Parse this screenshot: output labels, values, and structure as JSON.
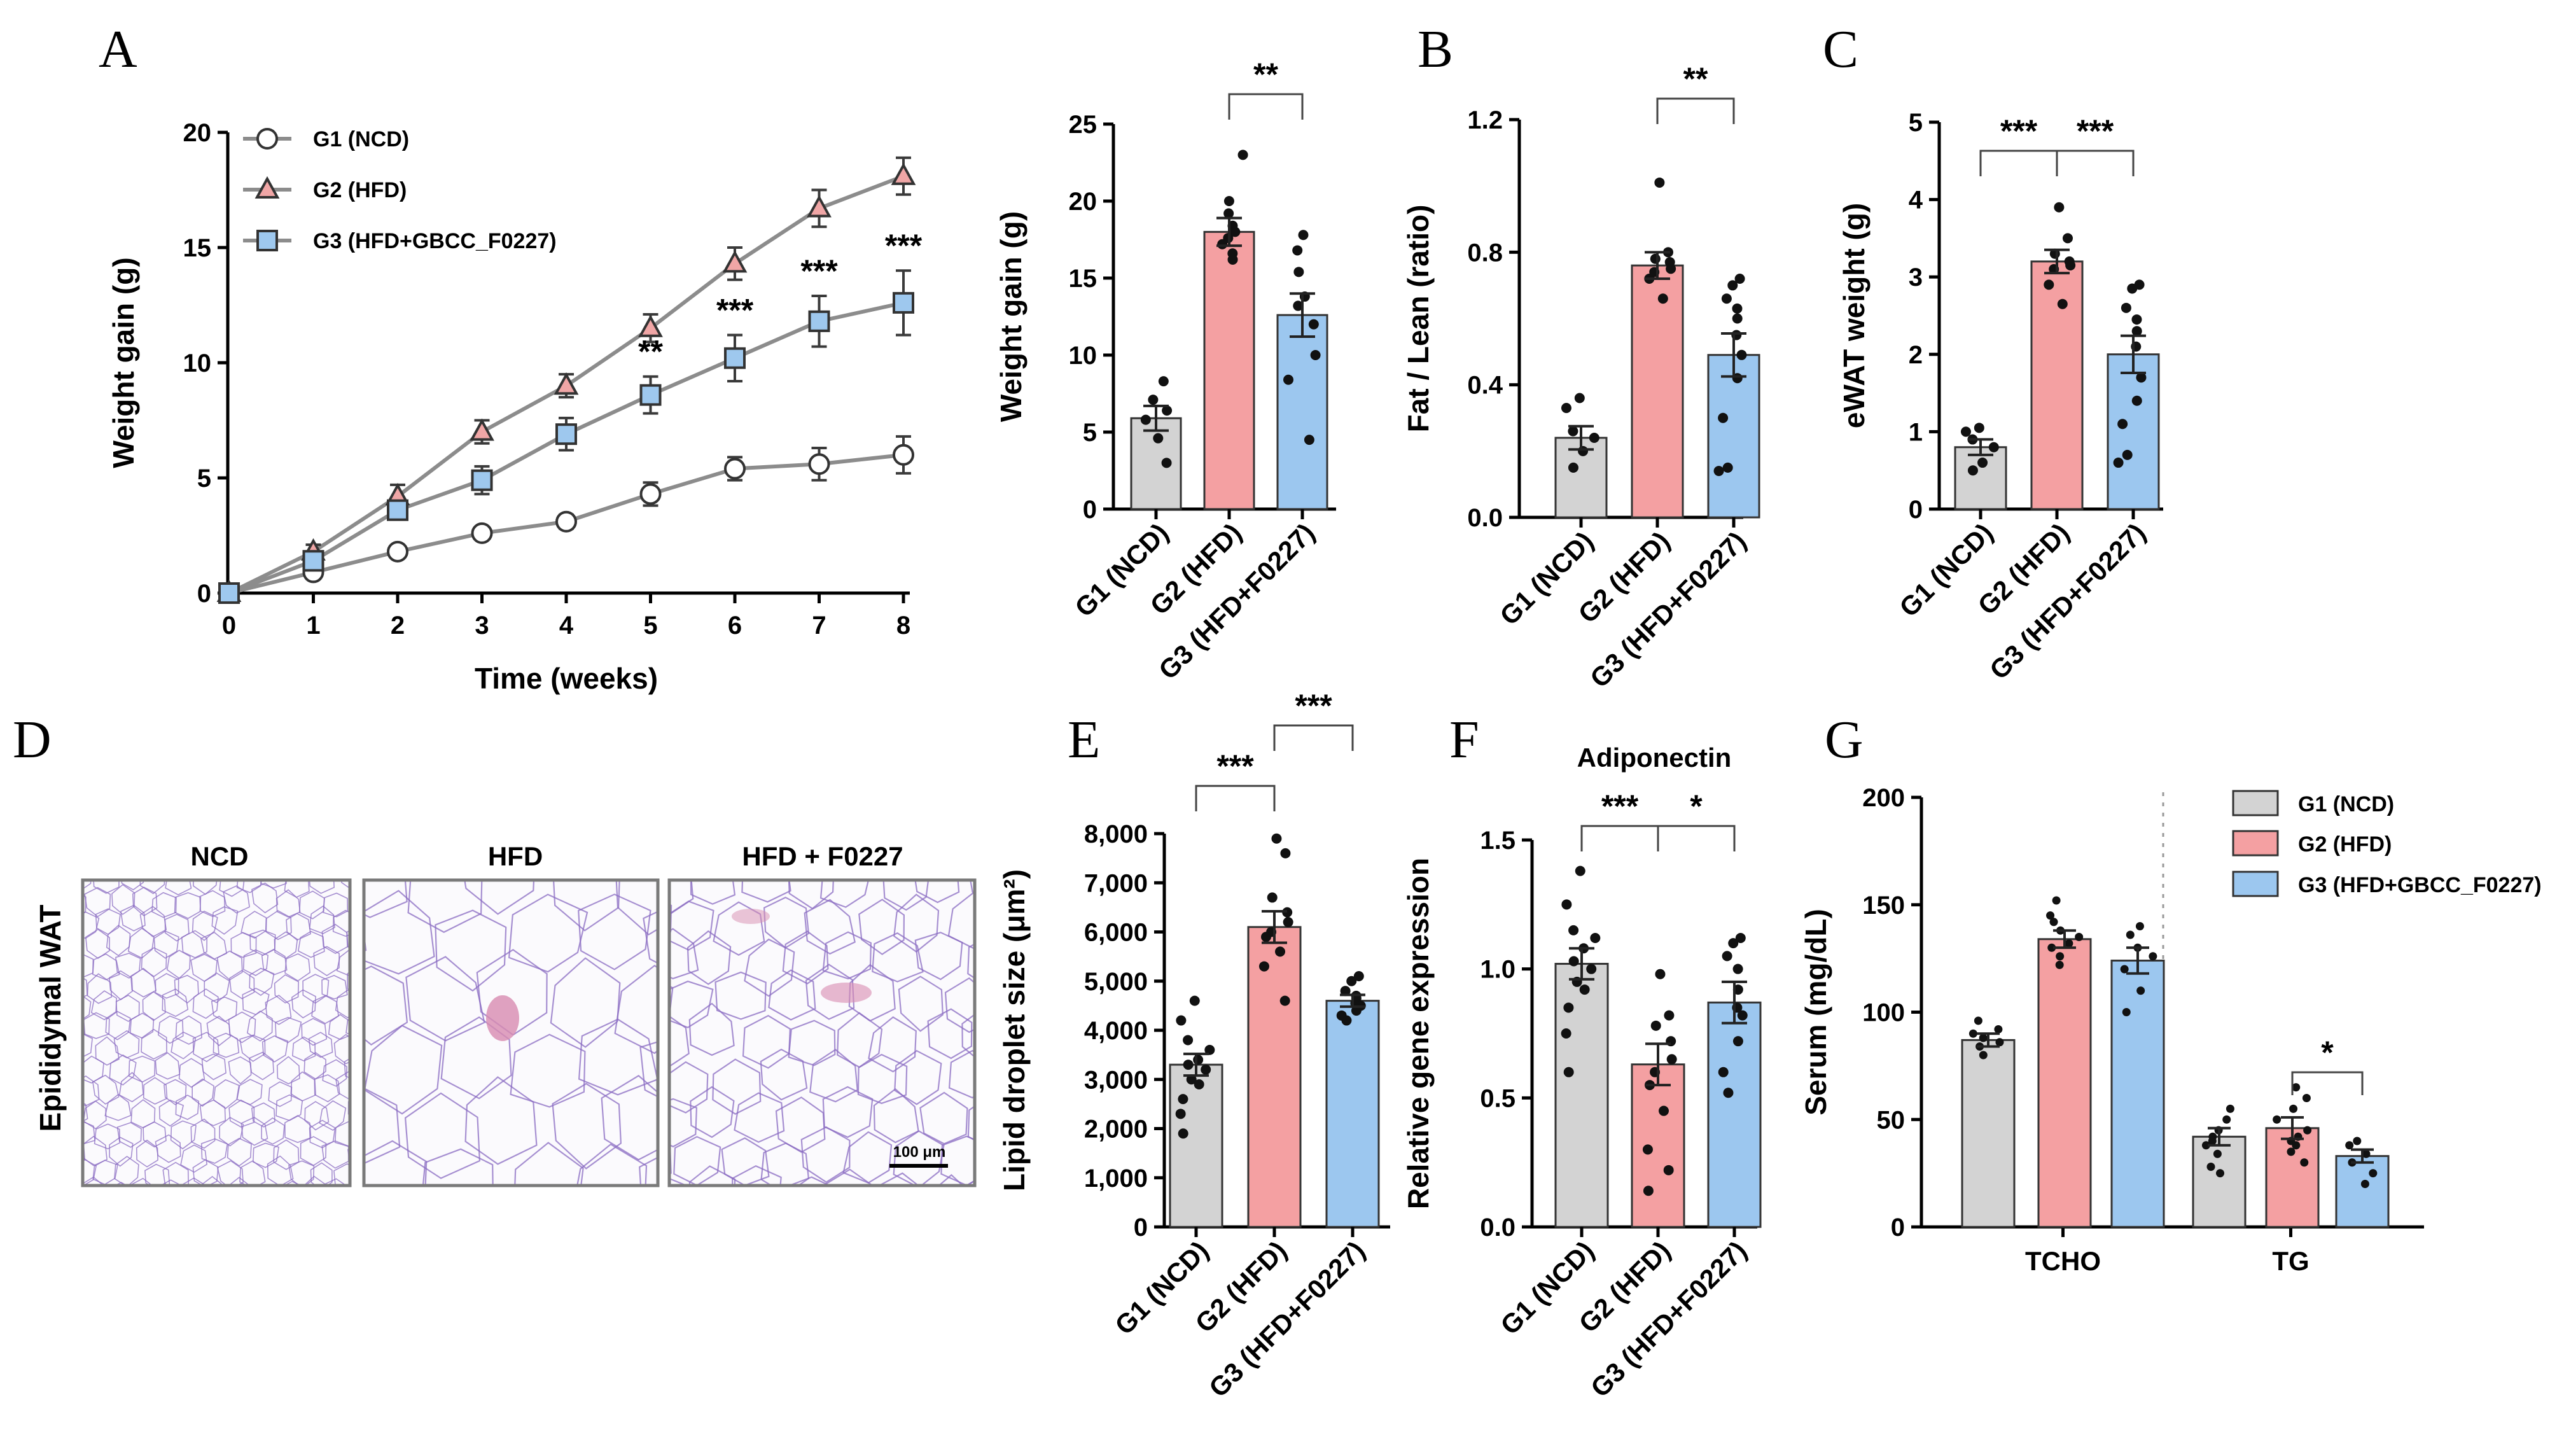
{
  "panel_labels": [
    "A",
    "B",
    "C",
    "D",
    "E",
    "F",
    "G"
  ],
  "colors": {
    "g1": "#d3d3d3",
    "g2": "#f4a0a2",
    "g3": "#9cc7ef",
    "g1_marker": "#ffffff",
    "g2_marker": "#f0a6a6",
    "g3_marker": "#9ec8ee",
    "line": "#8c8c8c",
    "he_membrane": "#8a6bc2",
    "he_pink": "#d88bb0"
  },
  "chart_data": [
    {
      "id": "A",
      "type": "line",
      "xlabel": "Time (weeks)",
      "ylabel": "Weight gain (g)",
      "x": [
        0,
        1,
        2,
        3,
        4,
        5,
        6,
        7,
        8
      ],
      "xlim": [
        0,
        8
      ],
      "ylim": [
        0,
        20
      ],
      "xticks": [
        "0",
        "1",
        "2",
        "3",
        "4",
        "5",
        "6",
        "7",
        "8"
      ],
      "yticks": [
        "0",
        "5",
        "10",
        "15",
        "20"
      ],
      "legend_placement": "top-left",
      "series": [
        {
          "name": "G1 (NCD)",
          "marker": "circle",
          "values": [
            0,
            0.9,
            1.8,
            2.6,
            3.1,
            4.3,
            5.4,
            5.6,
            6.0
          ],
          "errors": [
            0.1,
            0.2,
            0.2,
            0.2,
            0.3,
            0.5,
            0.5,
            0.7,
            0.8
          ]
        },
        {
          "name": "G2 (HFD)",
          "marker": "triangle",
          "values": [
            0,
            1.8,
            4.2,
            7.0,
            9.0,
            11.5,
            14.3,
            16.7,
            18.1
          ],
          "errors": [
            0.1,
            0.3,
            0.5,
            0.5,
            0.5,
            0.6,
            0.7,
            0.8,
            0.8
          ]
        },
        {
          "name": "G3 (HFD+GBCC_F0227)",
          "marker": "square",
          "values": [
            0,
            1.4,
            3.6,
            4.9,
            6.9,
            8.6,
            10.2,
            11.8,
            12.6
          ],
          "errors": [
            0.1,
            0.3,
            0.4,
            0.6,
            0.7,
            0.8,
            1.0,
            1.1,
            1.4
          ]
        }
      ],
      "annotations": [
        {
          "x": 5,
          "text": "**"
        },
        {
          "x": 6,
          "text": "***"
        },
        {
          "x": 7,
          "text": "***"
        },
        {
          "x": 8,
          "text": "***"
        }
      ]
    },
    {
      "id": "A2",
      "type": "bar",
      "ylabel": "Weight gain  (g)",
      "categories": [
        "G1 (NCD)",
        "G2 (HFD)",
        "G3 (HFD+F0227)"
      ],
      "values": [
        5.9,
        18.0,
        12.6
      ],
      "errors": [
        0.8,
        0.9,
        1.4
      ],
      "ylim": [
        0,
        25
      ],
      "yticks": [
        "0",
        "5",
        "10",
        "15",
        "20",
        "25"
      ],
      "points": [
        [
          8.3,
          7.1,
          6.4,
          5.8,
          4.6,
          3.0
        ],
        [
          23.0,
          20.0,
          19.2,
          18.4,
          18.0,
          17.6,
          17.2,
          16.6,
          16.2
        ],
        [
          17.8,
          16.8,
          15.4,
          13.8,
          13.2,
          12.0,
          10.0,
          8.4,
          4.5
        ]
      ],
      "brackets": [
        {
          "from": 1,
          "to": 2,
          "text": "**"
        }
      ]
    },
    {
      "id": "B",
      "type": "bar",
      "ylabel": "Fat / Lean (ratio)",
      "categories": [
        "G1 (NCD)",
        "G2 (HFD)",
        "G3 (HFD+F0227)"
      ],
      "values": [
        0.24,
        0.76,
        0.49
      ],
      "errors": [
        0.035,
        0.04,
        0.065
      ],
      "ylim": [
        0,
        1.2
      ],
      "yticks": [
        "0.0",
        "0.4",
        "0.8",
        "1.2"
      ],
      "points": [
        [
          0.36,
          0.33,
          0.26,
          0.24,
          0.2,
          0.15
        ],
        [
          1.01,
          0.8,
          0.78,
          0.77,
          0.75,
          0.74,
          0.72,
          0.66
        ],
        [
          0.72,
          0.7,
          0.66,
          0.63,
          0.6,
          0.55,
          0.49,
          0.42,
          0.3,
          0.15,
          0.14
        ]
      ],
      "brackets": [
        {
          "from": 1,
          "to": 2,
          "text": "**"
        }
      ]
    },
    {
      "id": "C",
      "type": "bar",
      "ylabel": "eWAT weight  (g)",
      "categories": [
        "G1 (NCD)",
        "G2 (HFD)",
        "G3 (HFD+F0227)"
      ],
      "values": [
        0.8,
        3.2,
        2.0
      ],
      "errors": [
        0.1,
        0.15,
        0.24
      ],
      "ylim": [
        0,
        5
      ],
      "yticks": [
        "0",
        "1",
        "2",
        "3",
        "4",
        "5"
      ],
      "points": [
        [
          1.05,
          1.0,
          0.9,
          0.8,
          0.6,
          0.5
        ],
        [
          3.9,
          3.5,
          3.3,
          3.2,
          3.15,
          3.1,
          2.9,
          2.65
        ],
        [
          2.9,
          2.85,
          2.6,
          2.45,
          2.3,
          2.1,
          1.7,
          1.4,
          1.1,
          0.7,
          0.6
        ]
      ],
      "brackets": [
        {
          "from": 0,
          "to": 1,
          "text": "***"
        },
        {
          "from": 1,
          "to": 2,
          "text": "***"
        }
      ]
    },
    {
      "id": "E",
      "type": "bar",
      "ylabel": "Lipid droplet size  (μm²)",
      "categories": [
        "G1 (NCD)",
        "G2 (HFD)",
        "G3 (HFD+F0227)"
      ],
      "values": [
        3300,
        6100,
        4600
      ],
      "errors": [
        220,
        320,
        120
      ],
      "ylim": [
        0,
        8000
      ],
      "yticks": [
        "0",
        "1,000",
        "2,000",
        "3,000",
        "4,000",
        "5,000",
        "6,000",
        "7,000",
        "8,000"
      ],
      "points": [
        [
          4600,
          4200,
          3800,
          3600,
          3400,
          3300,
          3200,
          3000,
          2900,
          2600,
          2300,
          1900
        ],
        [
          7900,
          7600,
          6700,
          6400,
          6200,
          6000,
          5900,
          5600,
          5300,
          4600
        ],
        [
          5100,
          5000,
          4800,
          4700,
          4650,
          4550,
          4500,
          4400,
          4300,
          4200
        ]
      ],
      "brackets": [
        {
          "from": 0,
          "to": 1,
          "text": "***"
        },
        {
          "from": 1,
          "to": 2,
          "text": "***"
        }
      ]
    },
    {
      "id": "F",
      "type": "bar",
      "title": "Adiponectin",
      "ylabel": "Relative gene expression",
      "categories": [
        "G1 (NCD)",
        "G2 (HFD)",
        "G3 (HFD+F0227)"
      ],
      "values": [
        1.02,
        0.63,
        0.87
      ],
      "errors": [
        0.06,
        0.08,
        0.08
      ],
      "ylim": [
        0,
        1.5
      ],
      "yticks": [
        "0.0",
        "0.5",
        "1.0",
        "1.5"
      ],
      "points": [
        [
          1.38,
          1.25,
          1.15,
          1.12,
          1.08,
          1.03,
          1.0,
          0.95,
          0.92,
          0.85,
          0.75,
          0.6
        ],
        [
          0.98,
          0.82,
          0.78,
          0.72,
          0.65,
          0.6,
          0.55,
          0.45,
          0.3,
          0.22,
          0.14
        ],
        [
          1.12,
          1.1,
          1.05,
          1.0,
          0.92,
          0.85,
          0.82,
          0.72,
          0.6,
          0.52
        ]
      ],
      "brackets": [
        {
          "from": 0,
          "to": 1,
          "text": "***"
        },
        {
          "from": 1,
          "to": 2,
          "text": "*"
        }
      ]
    },
    {
      "id": "G",
      "type": "bar",
      "ylabel": "Serum  (mg/dL)",
      "categories": [
        "TCHO",
        "TG"
      ],
      "ylim": [
        0,
        200
      ],
      "yticks": [
        "0",
        "50",
        "100",
        "150",
        "200"
      ],
      "legend_placement": "top-right",
      "series": [
        {
          "name": "G1 (NCD)",
          "values": [
            87,
            42
          ],
          "errors": [
            3,
            4
          ],
          "points": [
            [
              96,
              92,
              90,
              88,
              86,
              84,
              80
            ],
            [
              55,
              50,
              45,
              42,
              40,
              38,
              34,
              28,
              25
            ]
          ]
        },
        {
          "name": "G2 (HFD)",
          "values": [
            134,
            46
          ],
          "errors": [
            4,
            5
          ],
          "points": [
            [
              152,
              145,
              142,
              138,
              135,
              132,
              130,
              126,
              122
            ],
            [
              65,
              60,
              55,
              50,
              45,
              42,
              40,
              38,
              35,
              30
            ]
          ]
        },
        {
          "name": "G3 (HFD+GBCC_F0227)",
          "values": [
            124,
            33
          ],
          "errors": [
            6,
            3
          ],
          "points": [
            [
              140,
              136,
              130,
              126,
              120,
              110,
              100
            ],
            [
              40,
              38,
              34,
              30,
              25,
              20
            ]
          ]
        }
      ],
      "brackets": [
        {
          "group": 1,
          "from": 1,
          "to": 2,
          "text": "*"
        }
      ]
    }
  ],
  "micrographs": {
    "row_label": "Epididymal WAT",
    "panels": [
      {
        "title": "NCD",
        "cell": "small"
      },
      {
        "title": "HFD",
        "cell": "large"
      },
      {
        "title": "HFD + F0227",
        "cell": "medium"
      }
    ],
    "scale_bar": "100 μm"
  }
}
